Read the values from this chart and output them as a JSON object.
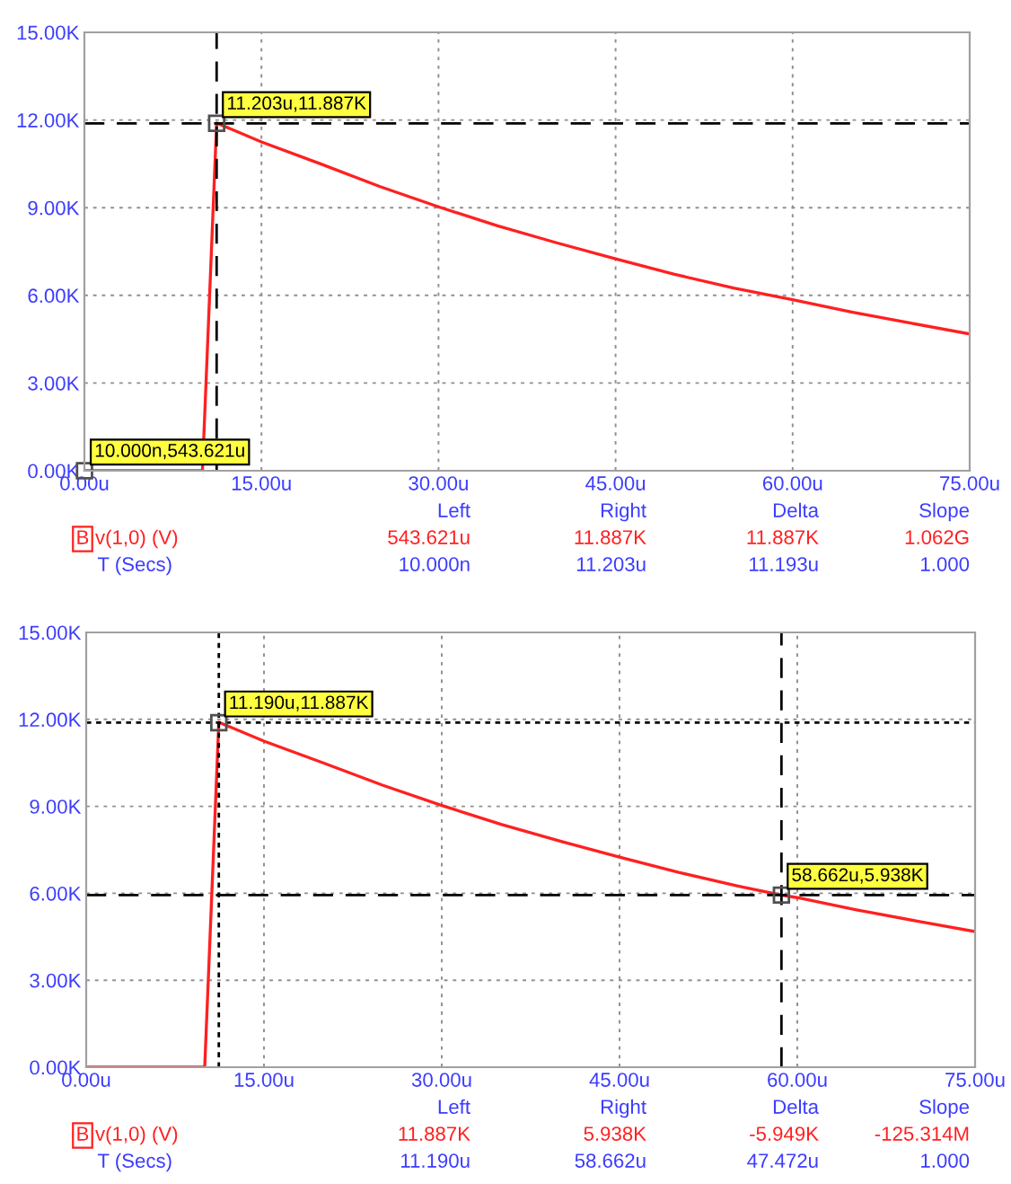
{
  "chart_data": [
    {
      "type": "line",
      "x": [
        0,
        10,
        11.203,
        15,
        20,
        25,
        30,
        35,
        40,
        45,
        50,
        55,
        60,
        65,
        70,
        75
      ],
      "series": [
        {
          "name": "v(1,0) (V)",
          "color": "#ff2020",
          "values": [
            0,
            0,
            11.9,
            11.25,
            10.5,
            9.73,
            9.03,
            8.38,
            7.8,
            7.25,
            6.72,
            6.25,
            5.85,
            5.43,
            5.05,
            4.68
          ]
        }
      ],
      "xlim": [
        0,
        75
      ],
      "xticks": [
        {
          "value": 0,
          "label": "0.00u"
        },
        {
          "value": 15,
          "label": "15.00u"
        },
        {
          "value": 30,
          "label": "30.00u"
        },
        {
          "value": 45,
          "label": "45.00u"
        },
        {
          "value": 60,
          "label": "60.00u"
        },
        {
          "value": 75,
          "label": "75.00u"
        }
      ],
      "ylim": [
        0,
        15
      ],
      "yticks": [
        {
          "value": 0,
          "label": "0.00K"
        },
        {
          "value": 3,
          "label": "3.00K"
        },
        {
          "value": 6,
          "label": "6.00K"
        },
        {
          "value": 9,
          "label": "9.00K"
        },
        {
          "value": 12,
          "label": "12.00K"
        },
        {
          "value": 15,
          "label": "15.00K"
        }
      ],
      "grid": true,
      "legend": "bottom left",
      "marker": "none",
      "line_style": "solid",
      "ref_lines": [
        {
          "axis": "x",
          "value": 11.203,
          "color": "#000000",
          "line_style": "dashed"
        },
        {
          "axis": "y",
          "value": 11.887,
          "color": "#000000",
          "line_style": "dashed"
        }
      ],
      "annotations": [
        {
          "text": "11.203u,11.887K",
          "x": 11.203,
          "y": 11.887
        },
        {
          "text": "10.000n,543.621u",
          "x": 0.01,
          "y": 0
        },
        "Left",
        "Right",
        "Delta",
        "Slope",
        "B",
        "543.621u",
        "11.887K",
        "11.887K",
        "1.062G",
        "T (Secs)",
        "10.000n",
        "11.203u",
        "11.193u",
        "1.000"
      ]
    },
    {
      "type": "line",
      "x": [
        0,
        10,
        11.19,
        15,
        20,
        25,
        30,
        35,
        40,
        45,
        50,
        55,
        58.662,
        60,
        65,
        70,
        75
      ],
      "series": [
        {
          "name": "v(1,0) (V)",
          "color": "#ff2020",
          "values": [
            0,
            0,
            11.9,
            11.25,
            10.5,
            9.73,
            9.03,
            8.38,
            7.8,
            7.25,
            6.72,
            6.25,
            5.94,
            5.85,
            5.43,
            5.05,
            4.68
          ]
        }
      ],
      "xlim": [
        0,
        75
      ],
      "xticks": [
        {
          "value": 0,
          "label": "0.00u"
        },
        {
          "value": 15,
          "label": "15.00u"
        },
        {
          "value": 30,
          "label": "30.00u"
        },
        {
          "value": 45,
          "label": "45.00u"
        },
        {
          "value": 60,
          "label": "60.00u"
        },
        {
          "value": 75,
          "label": "75.00u"
        }
      ],
      "ylim": [
        0,
        15
      ],
      "yticks": [
        {
          "value": 0,
          "label": "0.00K"
        },
        {
          "value": 3,
          "label": "3.00K"
        },
        {
          "value": 6,
          "label": "6.00K"
        },
        {
          "value": 9,
          "label": "9.00K"
        },
        {
          "value": 12,
          "label": "12.00K"
        },
        {
          "value": 15,
          "label": "15.00K"
        }
      ],
      "grid": true,
      "legend": "bottom left",
      "marker": "none",
      "line_style": "solid",
      "ref_lines": [
        {
          "axis": "x",
          "value": 11.19,
          "color": "#000000",
          "line_style": "dotted"
        },
        {
          "axis": "y",
          "value": 11.887,
          "color": "#000000",
          "line_style": "dotted"
        },
        {
          "axis": "x",
          "value": 58.662,
          "color": "#000000",
          "line_style": "dashed"
        },
        {
          "axis": "y",
          "value": 5.938,
          "color": "#000000",
          "line_style": "dashed"
        }
      ],
      "annotations": [
        {
          "text": "11.190u,11.887K",
          "x": 11.19,
          "y": 11.887
        },
        {
          "text": "58.662u,5.938K",
          "x": 58.662,
          "y": 5.938
        },
        "Left",
        "Right",
        "Delta",
        "Slope",
        "B",
        "11.887K",
        "5.938K",
        "-5.949K",
        "-125.314M",
        "T (Secs)",
        "11.190u",
        "58.662u",
        "47.472u",
        "1.000"
      ]
    }
  ]
}
